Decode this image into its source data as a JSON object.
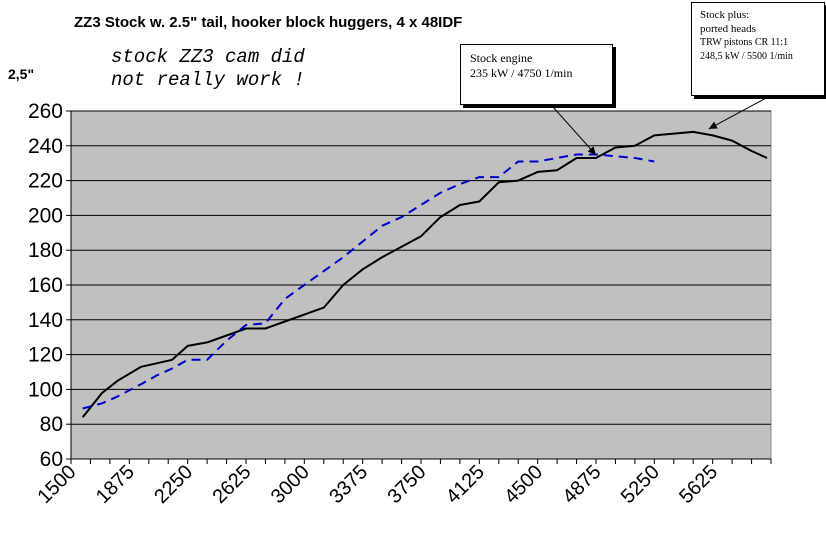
{
  "chart_data": {
    "type": "line",
    "title": "ZZ3 Stock w. 2.5\" tail, hooker block huggers, 4 x 48IDF",
    "ylabel": "2,5\"",
    "xlabel": "",
    "ylim": [
      60,
      260
    ],
    "yticks": [
      60,
      80,
      100,
      120,
      140,
      160,
      180,
      200,
      220,
      240,
      260
    ],
    "xlim": [
      1500,
      6000
    ],
    "xticks": [
      1500,
      1875,
      2250,
      2625,
      3000,
      3375,
      3750,
      4125,
      4500,
      4875,
      5250,
      5625
    ],
    "grid": "horizontal",
    "background_color": "#c0c0c0",
    "series": [
      {
        "color": "#000000",
        "style": "solid",
        "x": [
          1575,
          1700,
          1800,
          1950,
          2050,
          2150,
          2250,
          2375,
          2500,
          2625,
          2750,
          2875,
          3000,
          3125,
          3250,
          3375,
          3500,
          3625,
          3750,
          3875,
          4000,
          4125,
          4250,
          4375,
          4500,
          4625,
          4750,
          4875,
          5000,
          5125,
          5250,
          5375,
          5500,
          5625,
          5750,
          5875,
          5975
        ],
        "y": [
          84,
          98,
          105,
          113,
          115,
          117,
          125,
          127,
          131,
          135,
          135,
          139,
          143,
          147,
          160,
          169,
          176,
          182,
          188,
          199,
          206,
          208,
          219,
          220,
          225,
          226,
          233,
          233,
          239,
          240,
          246,
          247,
          248,
          246,
          243,
          237,
          233
        ]
      },
      {
        "color": "#0000cc",
        "style": "dashed",
        "x": [
          1575,
          1700,
          1800,
          1950,
          2050,
          2150,
          2250,
          2375,
          2500,
          2625,
          2750,
          2875,
          3000,
          3125,
          3250,
          3375,
          3500,
          3625,
          3750,
          3875,
          4000,
          4125,
          4250,
          4375,
          4500,
          4625,
          4750,
          4875,
          5000,
          5125,
          5250
        ],
        "y": [
          89,
          92,
          96,
          103,
          108,
          112,
          117,
          117,
          128,
          137,
          138,
          152,
          160,
          168,
          176,
          185,
          194,
          199,
          206,
          213,
          218,
          222,
          222,
          231,
          231,
          233,
          235,
          235,
          234,
          233,
          231
        ]
      }
    ],
    "annotations": [
      {
        "lines": [
          "stock ZZ3 cam did",
          "not really work !"
        ]
      }
    ]
  },
  "callouts": {
    "stock": {
      "lines": [
        "Stock engine",
        "235 kW / 4750 1/min"
      ],
      "target": {
        "x": 4875,
        "y": 233
      }
    },
    "plus": {
      "lines": [
        "Stock plus:",
        "ported heads",
        "TRW pistons CR 11:1",
        "248,5 kW / 5500 1/min"
      ],
      "target": {
        "x": 5600,
        "y": 248
      }
    }
  },
  "colors": {
    "plot_bg": "#c0c0c0",
    "page_bg": "#ffffff",
    "grid": "#000000",
    "blue": "#0000cc"
  }
}
